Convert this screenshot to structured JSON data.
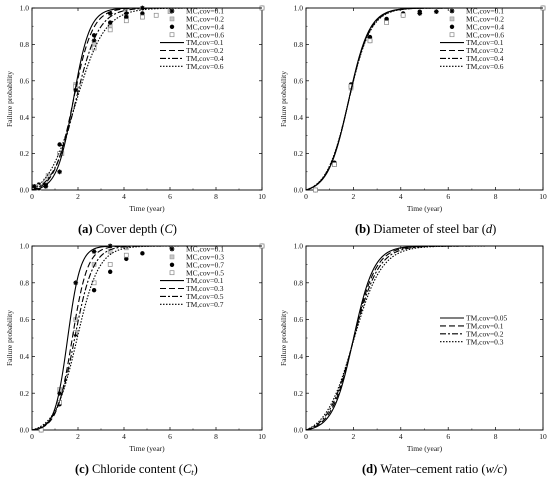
{
  "chart_data": [
    {
      "type": "line",
      "id": "a",
      "caption_letter": "(a)",
      "caption_text": " Cover depth (",
      "caption_symbol": "C",
      "caption_close": ")",
      "xlabel": "Time (year)",
      "ylabel": "Failure probability",
      "xlim": [
        0,
        10
      ],
      "ylim": [
        0,
        1.0
      ],
      "xticks": [
        "0",
        "2",
        "4",
        "6",
        "8",
        "10"
      ],
      "yticks": [
        "0.0",
        "0.2",
        "0.4",
        "0.6",
        "0.8",
        "1.0"
      ],
      "legend_position": "right",
      "series": [
        {
          "name": "MC,cov=0.1",
          "kind": "marker",
          "marker": "star",
          "points": [
            [
              0.1,
              0.02
            ],
            [
              0.3,
              0.03
            ],
            [
              0.6,
              0.02
            ],
            [
              1.2,
              0.1
            ],
            [
              1.9,
              0.55
            ],
            [
              2.7,
              0.82
            ],
            [
              3.4,
              0.97
            ],
            [
              4.1,
              0.97
            ],
            [
              4.8,
              1.0
            ],
            [
              10,
              1.0
            ]
          ]
        },
        {
          "name": "MC,cov=0.2",
          "kind": "marker",
          "marker": "hollow-square-gray",
          "points": [
            [
              0.3,
              0.01
            ],
            [
              0.7,
              0.08
            ],
            [
              1.3,
              0.2
            ],
            [
              1.9,
              0.58
            ],
            [
              2.7,
              0.8
            ],
            [
              3.4,
              0.9
            ],
            [
              4.1,
              0.95
            ],
            [
              6,
              0.98
            ],
            [
              10,
              1.0
            ]
          ]
        },
        {
          "name": "MC,cov=0.4",
          "kind": "marker",
          "marker": "filled-circle",
          "points": [
            [
              0.3,
              0.01
            ],
            [
              0.6,
              0.03
            ],
            [
              1.2,
              0.25
            ],
            [
              1.9,
              0.56
            ],
            [
              2.7,
              0.85
            ],
            [
              3.4,
              0.92
            ],
            [
              4.1,
              0.95
            ],
            [
              4.8,
              0.97
            ],
            [
              10,
              1.0
            ]
          ]
        },
        {
          "name": "MC,cov=0.6",
          "kind": "marker",
          "marker": "hollow-square",
          "points": [
            [
              0.3,
              0.02
            ],
            [
              0.6,
              0.05
            ],
            [
              1.2,
              0.2
            ],
            [
              1.9,
              0.57
            ],
            [
              2.7,
              0.78
            ],
            [
              3.4,
              0.88
            ],
            [
              4.1,
              0.93
            ],
            [
              4.8,
              0.95
            ],
            [
              5.4,
              0.96
            ],
            [
              10,
              1.0
            ]
          ]
        },
        {
          "name": "TM,cov=0.1",
          "kind": "line",
          "dash": "",
          "k": 2.8,
          "t0": 1.8
        },
        {
          "name": "TM,cov=0.2",
          "kind": "line",
          "dash": "6,3",
          "k": 2.4,
          "t0": 1.8
        },
        {
          "name": "TM,cov=0.4",
          "kind": "line",
          "dash": "6,2,2,2",
          "k": 2.0,
          "t0": 1.9
        },
        {
          "name": "TM,cov=0.6",
          "kind": "line",
          "dash": "1.5,1.5",
          "k": 1.6,
          "t0": 1.9
        }
      ]
    },
    {
      "type": "line",
      "id": "b",
      "caption_letter": "(b)",
      "caption_text": " Diameter of steel bar (",
      "caption_symbol": "d",
      "caption_close": ")",
      "xlabel": "Time (year)",
      "ylabel": "Failure probability",
      "xlim": [
        0,
        10
      ],
      "ylim": [
        0,
        1.0
      ],
      "xticks": [
        "0",
        "2",
        "4",
        "6",
        "8",
        "10"
      ],
      "yticks": [
        "0.0",
        "0.2",
        "0.4",
        "0.6",
        "0.8",
        "1.0"
      ],
      "legend_position": "right",
      "series": [
        {
          "name": "MC,cov=0.1",
          "kind": "marker",
          "marker": "star",
          "points": [
            [
              0.4,
              0.0
            ],
            [
              1.2,
              0.14
            ],
            [
              1.9,
              0.57
            ],
            [
              2.7,
              0.82
            ],
            [
              3.4,
              0.93
            ],
            [
              4.1,
              0.96
            ],
            [
              4.8,
              0.97
            ],
            [
              5.5,
              0.98
            ],
            [
              10,
              1.0
            ]
          ]
        },
        {
          "name": "MC,cov=0.2",
          "kind": "marker",
          "marker": "hollow-square-gray",
          "points": [
            [
              0.4,
              0.0
            ],
            [
              1.2,
              0.14
            ],
            [
              1.9,
              0.56
            ],
            [
              2.7,
              0.82
            ],
            [
              3.4,
              0.93
            ],
            [
              4.1,
              0.96
            ],
            [
              10,
              1.0
            ]
          ]
        },
        {
          "name": "MC,cov=0.4",
          "kind": "marker",
          "marker": "filled-circle",
          "points": [
            [
              0.4,
              0.0
            ],
            [
              1.2,
              0.15
            ],
            [
              1.9,
              0.58
            ],
            [
              2.7,
              0.84
            ],
            [
              3.4,
              0.94
            ],
            [
              4.1,
              0.97
            ],
            [
              4.8,
              0.98
            ],
            [
              10,
              1.0
            ]
          ]
        },
        {
          "name": "MC,cov=0.6",
          "kind": "marker",
          "marker": "hollow-square",
          "points": [
            [
              0.4,
              0.0
            ],
            [
              1.2,
              0.14
            ],
            [
              1.9,
              0.57
            ],
            [
              2.7,
              0.82
            ],
            [
              3.4,
              0.92
            ],
            [
              4.1,
              0.96
            ],
            [
              10,
              1.0
            ]
          ]
        },
        {
          "name": "TM,cov=0.1",
          "kind": "line",
          "dash": "",
          "k": 2.3,
          "t0": 1.8
        },
        {
          "name": "TM,cov=0.2",
          "kind": "line",
          "dash": "6,3",
          "k": 2.25,
          "t0": 1.8
        },
        {
          "name": "TM,cov=0.4",
          "kind": "line",
          "dash": "6,2,2,2",
          "k": 2.2,
          "t0": 1.8
        },
        {
          "name": "TM,cov=0.6",
          "kind": "line",
          "dash": "1.5,1.5",
          "k": 2.15,
          "t0": 1.8
        }
      ]
    },
    {
      "type": "line",
      "id": "c",
      "caption_letter": "(c)",
      "caption_text": " Chloride content (",
      "caption_symbol": "C",
      "caption_sub": "t",
      "caption_close": ")",
      "xlabel": "Time (year)",
      "ylabel": "Failure probability",
      "xlim": [
        0,
        10
      ],
      "ylim": [
        0,
        1.0
      ],
      "xticks": [
        "0",
        "2",
        "4",
        "6",
        "8",
        "10"
      ],
      "yticks": [
        "0.0",
        "0.2",
        "0.4",
        "0.6",
        "0.8",
        "1.0"
      ],
      "legend_position": "right",
      "series": [
        {
          "name": "MC,cov=0.1",
          "kind": "marker",
          "marker": "star",
          "points": [
            [
              0.4,
              0.0
            ],
            [
              1.2,
              0.2
            ],
            [
              1.9,
              0.8
            ],
            [
              2.7,
              0.97
            ],
            [
              3.4,
              1.0
            ],
            [
              10,
              1.0
            ]
          ]
        },
        {
          "name": "MC,cov=0.3",
          "kind": "marker",
          "marker": "hollow-square-gray",
          "points": [
            [
              0.4,
              0.0
            ],
            [
              1.2,
              0.22
            ],
            [
              1.9,
              0.6
            ],
            [
              2.7,
              0.9
            ],
            [
              3.4,
              0.97
            ],
            [
              4.1,
              0.99
            ],
            [
              10,
              1.0
            ]
          ]
        },
        {
          "name": "MC,cov=0.7",
          "kind": "marker",
          "marker": "filled-circle",
          "points": [
            [
              0.4,
              0.0
            ],
            [
              1.2,
              0.14
            ],
            [
              1.9,
              0.52
            ],
            [
              2.7,
              0.76
            ],
            [
              3.4,
              0.86
            ],
            [
              4.1,
              0.93
            ],
            [
              4.8,
              0.96
            ],
            [
              10,
              1.0
            ]
          ]
        },
        {
          "name": "MC,cov=0.5",
          "kind": "marker",
          "marker": "hollow-square",
          "points": [
            [
              0.4,
              0.0
            ],
            [
              1.2,
              0.15
            ],
            [
              1.9,
              0.53
            ],
            [
              2.7,
              0.8
            ],
            [
              3.4,
              0.9
            ],
            [
              4.1,
              0.95
            ],
            [
              10,
              1.0
            ]
          ]
        },
        {
          "name": "TM,cov=0.1",
          "kind": "line",
          "dash": "",
          "k": 3.6,
          "t0": 1.55
        },
        {
          "name": "TM,cov=0.3",
          "kind": "line",
          "dash": "6,3",
          "k": 3.0,
          "t0": 1.75
        },
        {
          "name": "TM,cov=0.5",
          "kind": "line",
          "dash": "6,2,2,2",
          "k": 2.5,
          "t0": 1.85
        },
        {
          "name": "TM,cov=0.7",
          "kind": "line",
          "dash": "1.5,1.5",
          "k": 2.1,
          "t0": 1.95
        }
      ]
    },
    {
      "type": "line",
      "id": "d",
      "caption_letter": "(d)",
      "caption_text": " Water–cement ratio (",
      "caption_symbol": "w/c",
      "caption_close": ")",
      "xlabel": "Time (year)",
      "ylabel": "Failure probability",
      "xlim": [
        0,
        10
      ],
      "ylim": [
        0,
        1.0
      ],
      "xticks": [
        "0",
        "2",
        "4",
        "6",
        "8",
        "10"
      ],
      "yticks": [
        "0.0",
        "0.2",
        "0.4",
        "0.6",
        "0.8",
        "1.0"
      ],
      "legend_position": "center-right",
      "series": [
        {
          "name": "TM,cov=0.05",
          "kind": "line",
          "dash": "",
          "k": 2.3,
          "t0": 2.0
        },
        {
          "name": "TM,cov=0.1",
          "kind": "line",
          "dash": "6,3",
          "k": 2.1,
          "t0": 2.0
        },
        {
          "name": "TM,cov=0.2",
          "kind": "line",
          "dash": "6,2,2,2",
          "k": 1.9,
          "t0": 2.0
        },
        {
          "name": "TM,cov=0.3",
          "kind": "line",
          "dash": "1.5,1.5",
          "k": 1.7,
          "t0": 2.0
        }
      ]
    }
  ]
}
